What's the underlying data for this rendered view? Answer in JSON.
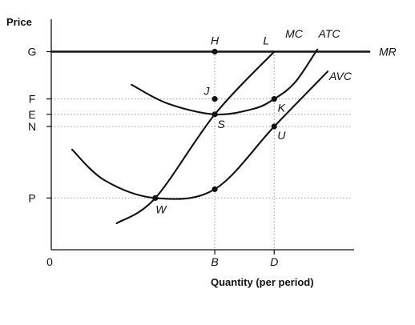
{
  "chart_data": {
    "type": "line",
    "title": "",
    "ylabel": "Price",
    "xlabel": "Quantity (per period)",
    "origin_label": "0",
    "xlim": [
      0,
      10
    ],
    "ylim": [
      0,
      10
    ],
    "y_ticks": [
      {
        "label": "G",
        "value": 9.0
      },
      {
        "label": "F",
        "value": 6.85
      },
      {
        "label": "E",
        "value": 6.15
      },
      {
        "label": "N",
        "value": 5.6
      },
      {
        "label": "P",
        "value": 2.35
      }
    ],
    "x_ticks": [
      {
        "label": "B",
        "value": 5.5
      },
      {
        "label": "D",
        "value": 7.5
      }
    ],
    "series": [
      {
        "name": "MR",
        "x": [
          0,
          10.7
        ],
        "y": [
          9.0,
          9.0
        ]
      },
      {
        "name": "MC",
        "x": [
          2.2,
          3.5,
          5.5,
          7.5
        ],
        "y": [
          1.2,
          2.35,
          6.15,
          9.0
        ]
      },
      {
        "name": "ATC",
        "x": [
          2.7,
          3.9,
          5.5,
          6.8,
          7.5,
          8.2,
          8.95
        ],
        "y": [
          7.5,
          6.65,
          6.15,
          6.4,
          6.85,
          7.6,
          9.1
        ]
      },
      {
        "name": "AVC",
        "x": [
          0.7,
          1.8,
          3.5,
          5.5,
          7.5,
          9.3
        ],
        "y": [
          4.55,
          3.15,
          2.35,
          2.75,
          5.6,
          8.1
        ]
      }
    ],
    "points": [
      {
        "label": "H",
        "x": 5.5,
        "y": 9.0
      },
      {
        "label": "L",
        "x": 7.5,
        "y": 9.0
      },
      {
        "label": "J",
        "x": 5.5,
        "y": 6.85
      },
      {
        "label": "K",
        "x": 7.5,
        "y": 6.85
      },
      {
        "label": "S",
        "x": 5.5,
        "y": 6.15
      },
      {
        "label": "U",
        "x": 7.5,
        "y": 5.6
      },
      {
        "label": "W",
        "x": 3.5,
        "y": 2.35
      },
      {
        "label": "",
        "x": 5.5,
        "y": 2.75
      }
    ],
    "grid": false
  }
}
